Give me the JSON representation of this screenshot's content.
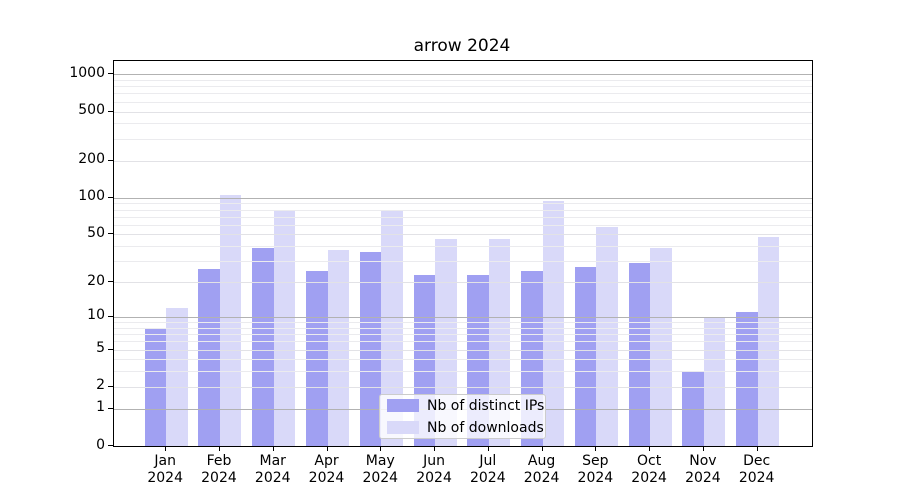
{
  "chart_data": {
    "type": "bar",
    "title": "arrow 2024",
    "categories": [
      {
        "month": "Jan",
        "year": "2024"
      },
      {
        "month": "Feb",
        "year": "2024"
      },
      {
        "month": "Mar",
        "year": "2024"
      },
      {
        "month": "Apr",
        "year": "2024"
      },
      {
        "month": "May",
        "year": "2024"
      },
      {
        "month": "Jun",
        "year": "2024"
      },
      {
        "month": "Jul",
        "year": "2024"
      },
      {
        "month": "Aug",
        "year": "2024"
      },
      {
        "month": "Sep",
        "year": "2024"
      },
      {
        "month": "Oct",
        "year": "2024"
      },
      {
        "month": "Nov",
        "year": "2024"
      },
      {
        "month": "Dec",
        "year": "2024"
      }
    ],
    "series": [
      {
        "name": "Nb of distinct IPs",
        "color": "#a0a0f2",
        "values": [
          8,
          26,
          39,
          25,
          36,
          23,
          23,
          25,
          27,
          29,
          3,
          11
        ]
      },
      {
        "name": "Nb of downloads",
        "color": "#d9d9f9",
        "values": [
          12,
          105,
          80,
          37,
          79,
          46,
          46,
          94,
          58,
          39,
          10,
          48
        ]
      }
    ],
    "y_scale": "log1p",
    "y_ticks": [
      0,
      1,
      2,
      5,
      10,
      20,
      50,
      100,
      200,
      500,
      1000
    ],
    "y_minor_ticks": [
      3,
      4,
      6,
      7,
      8,
      9,
      30,
      40,
      60,
      70,
      80,
      90,
      300,
      400,
      600,
      700,
      800,
      900
    ],
    "ylim": [
      0,
      1280
    ],
    "grid": true,
    "grid_above_bars": true,
    "legend_position": "lower center",
    "colors": {
      "major_grid": "#b2b2b2",
      "labeled_grid": "#e2e2e6",
      "minor_grid": "#ebebee",
      "spine": "#000000"
    }
  }
}
